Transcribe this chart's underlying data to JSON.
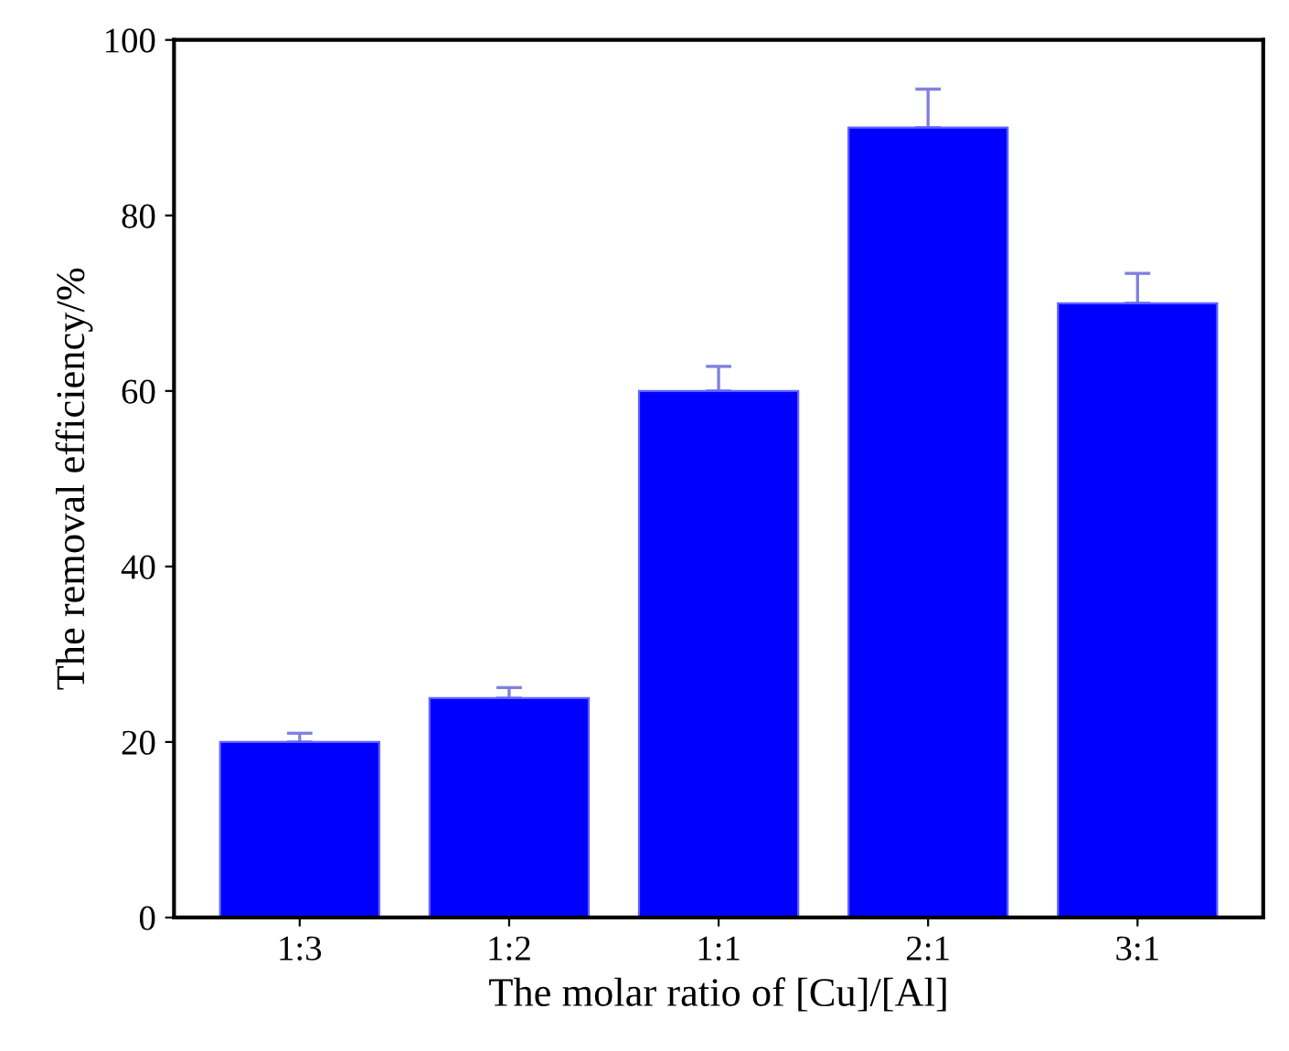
{
  "chart_data": {
    "type": "bar",
    "xlabel": "The molar ratio of [Cu]/[Al]",
    "ylabel": "The removal efficiency/%",
    "categories": [
      "1:3",
      "1:2",
      "1:1",
      "2:1",
      "3:1"
    ],
    "values": [
      20,
      25,
      60,
      90,
      70
    ],
    "errors": [
      [
        20,
        21
      ],
      [
        25,
        26.2
      ],
      [
        60,
        62.8
      ],
      [
        90,
        94.4
      ],
      [
        70,
        73.4
      ]
    ],
    "color": "#0000ff",
    "ylim": [
      0,
      100
    ],
    "yticks": [
      0,
      20,
      40,
      60,
      80,
      100
    ],
    "grid": false,
    "legend": false
  }
}
